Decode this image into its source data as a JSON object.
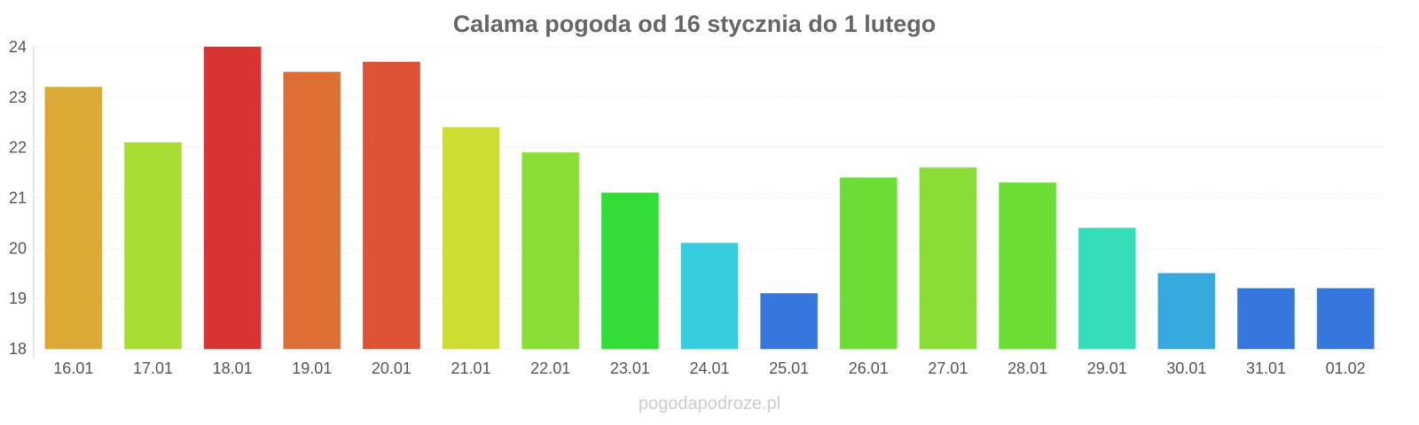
{
  "chart_data": {
    "type": "bar",
    "title": "Calama pogoda od 16 stycznia do 1 lutego",
    "categories": [
      "16.01",
      "17.01",
      "18.01",
      "19.01",
      "20.01",
      "21.01",
      "22.01",
      "23.01",
      "24.01",
      "25.01",
      "26.01",
      "27.01",
      "28.01",
      "29.01",
      "30.01",
      "31.01",
      "01.02"
    ],
    "values": [
      23.2,
      22.1,
      24.0,
      23.5,
      23.7,
      22.4,
      21.9,
      21.1,
      20.1,
      19.1,
      21.4,
      21.6,
      21.3,
      20.4,
      19.5,
      19.2,
      19.2
    ],
    "colors": [
      "#dca935",
      "#aadd33",
      "#d93434",
      "#dd6f34",
      "#dd5134",
      "#cedd34",
      "#8add34",
      "#33dd37",
      "#35cddd",
      "#3577dd",
      "#6bdd35",
      "#8add34",
      "#6bdd35",
      "#35ddb8",
      "#35a8dd",
      "#3577dd",
      "#3577dd"
    ],
    "ylim": [
      18,
      24
    ],
    "yticks": [
      "18",
      "19",
      "20",
      "21",
      "22",
      "23",
      "24"
    ],
    "grid": true,
    "xlabel": "",
    "ylabel": ""
  },
  "watermark": "pogodapodroze.pl"
}
